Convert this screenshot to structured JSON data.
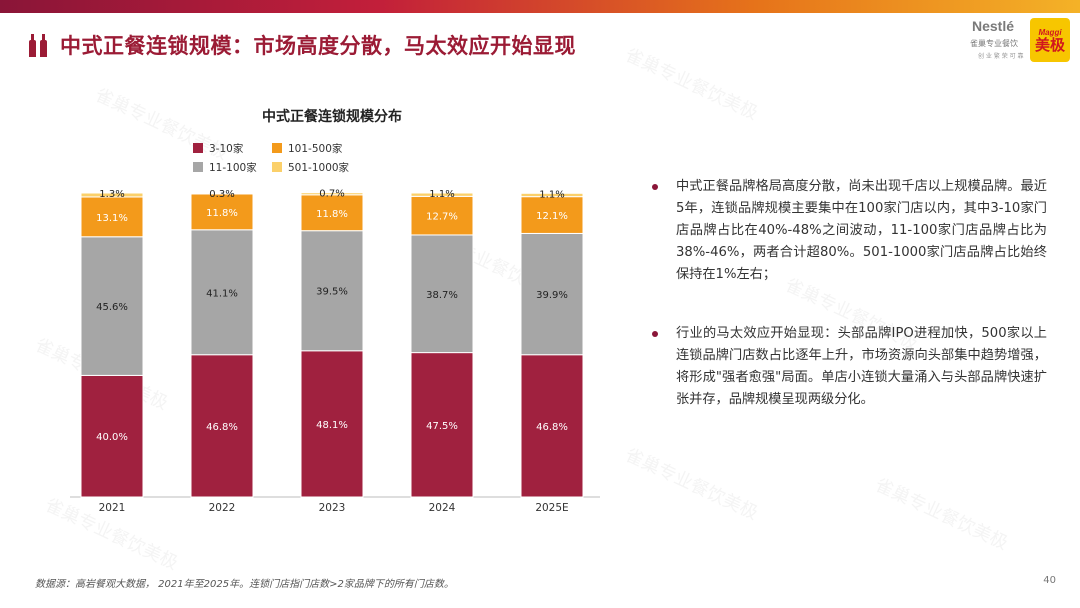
{
  "header": {
    "title": "中式正餐连锁规模：市场高度分散，马太效应开始显现",
    "accent_color": "#9b1b35"
  },
  "logos": {
    "nestle_word": "Nestlé",
    "nestle_sub": "雀巢专业餐饮",
    "nestle_tag": "创 业 繁 荣 可 靠",
    "maggi_word": "Maggi",
    "maggi_cn": "美极"
  },
  "watermark_text": "雀巢专业餐饮美极",
  "chart_data": {
    "type": "bar",
    "stacked": true,
    "title": "中式正餐连锁规模分布",
    "categories": [
      "2021",
      "2022",
      "2023",
      "2024",
      "2025E"
    ],
    "series": [
      {
        "name": "3-10家",
        "color": "#a0213f",
        "label_color": "#ffffff",
        "values": [
          40.0,
          46.8,
          48.1,
          47.5,
          46.8
        ]
      },
      {
        "name": "11-100家",
        "color": "#a6a6a6",
        "label_color": "#222222",
        "values": [
          45.6,
          41.1,
          39.5,
          38.7,
          39.9
        ]
      },
      {
        "name": "101-500家",
        "color": "#f39a1b",
        "label_color": "#ffffff",
        "values": [
          13.1,
          11.8,
          11.8,
          12.7,
          12.1
        ]
      },
      {
        "name": "501-1000家",
        "color": "#fbd06a",
        "label_color": "#222222",
        "values": [
          1.3,
          0.3,
          0.7,
          1.1,
          1.1
        ]
      }
    ],
    "legend_order": [
      "3-10家",
      "101-500家",
      "11-100家",
      "501-1000家"
    ],
    "ylim": [
      0,
      100
    ],
    "value_format": "percent_1dp",
    "legend_position": "top"
  },
  "bullets": [
    {
      "text": "中式正餐品牌格局高度分散，尚未出现千店以上规模品牌。最近5年，连锁品牌规模主要集中在100家门店以内，其中3-10家门店品牌占比在40%-48%之间波动，11-100家门店品牌占比为38%-46%，两者合计超80%。501-1000家门店品牌占比始终保持在1%左右；"
    },
    {
      "text": "行业的马太效应开始显现：头部品牌IPO进程加快，500家以上连锁品牌门店数占比逐年上升，市场资源向头部集中趋势增强，将形成\"强者愈强\"局面。单店小连锁大量涌入与头部品牌快速扩张并存，品牌规模呈现两级分化。"
    }
  ],
  "footer": {
    "source": "数据源：高岩餐观大数据，  2021年至2025年。连锁门店指门店数>2家品牌下的所有门店数。",
    "page_number": "40"
  }
}
